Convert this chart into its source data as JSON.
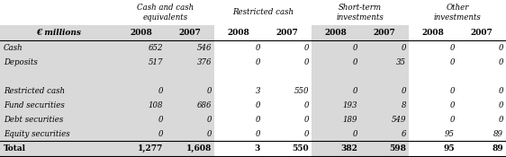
{
  "header_groups": [
    {
      "label": "Cash and cash\nequivalents",
      "cols": [
        "2008",
        "2007"
      ]
    },
    {
      "label": "Restricted cash",
      "cols": [
        "2008",
        "2007"
      ]
    },
    {
      "label": "Short-term\ninvestments",
      "cols": [
        "2008",
        "2007"
      ]
    },
    {
      "label": "Other\ninvestments",
      "cols": [
        "2008",
        "2007"
      ]
    }
  ],
  "col_header": "€ millions",
  "year_headers": [
    "2008",
    "2007",
    "2008",
    "2007",
    "2008",
    "2007",
    "2008",
    "2007"
  ],
  "rows": [
    {
      "label": "Cash",
      "values": [
        652,
        546,
        0,
        0,
        0,
        0,
        0,
        0
      ]
    },
    {
      "label": "Deposits",
      "values": [
        517,
        376,
        0,
        0,
        0,
        35,
        0,
        0
      ]
    },
    {
      "label": "",
      "values": [
        null,
        null,
        null,
        null,
        null,
        null,
        null,
        null
      ]
    },
    {
      "label": "Restricted cash",
      "values": [
        0,
        0,
        3,
        550,
        0,
        0,
        0,
        0
      ]
    },
    {
      "label": "Fund securities",
      "values": [
        108,
        686,
        0,
        0,
        193,
        8,
        0,
        0
      ]
    },
    {
      "label": "Debt securities",
      "values": [
        0,
        0,
        0,
        0,
        189,
        549,
        0,
        0
      ]
    },
    {
      "label": "Equity securities",
      "values": [
        0,
        0,
        0,
        0,
        0,
        6,
        95,
        89
      ]
    }
  ],
  "total_row": {
    "label": "Total",
    "values": [
      1277,
      1608,
      3,
      550,
      382,
      598,
      95,
      89
    ]
  },
  "bg_color_odd": "#d9d9d9",
  "bg_color_even": "#ffffff",
  "header_bg": "#d9d9d9",
  "total_bg": "#ffffff"
}
